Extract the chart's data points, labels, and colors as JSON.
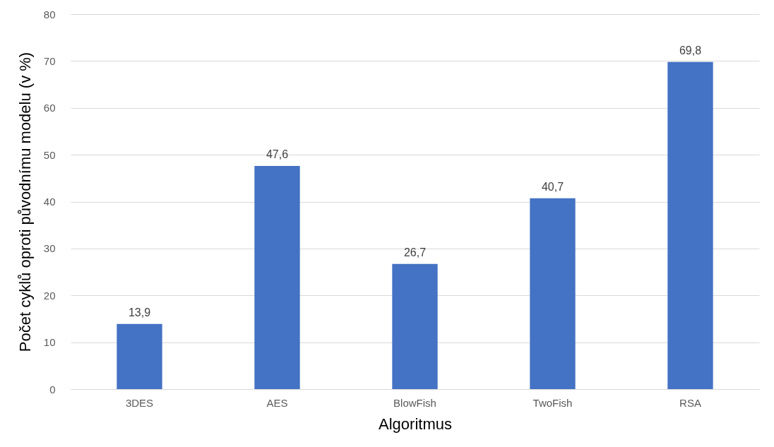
{
  "chart_data": {
    "type": "bar",
    "xlabel": "Algoritmus",
    "ylabel": "Počet cyklů oproti původnímu modelu (v %)",
    "categories": [
      "3DES",
      "AES",
      "BlowFish",
      "TwoFish",
      "RSA"
    ],
    "values": [
      13.9,
      47.6,
      26.7,
      40.7,
      69.8
    ],
    "value_labels": [
      "13,9",
      "47,6",
      "26,7",
      "40,7",
      "69,8"
    ],
    "color": "#4472c4",
    "ylim": [
      0,
      80
    ],
    "yticks": [
      0,
      10,
      20,
      30,
      40,
      50,
      60,
      70,
      80
    ],
    "grid": "y"
  }
}
